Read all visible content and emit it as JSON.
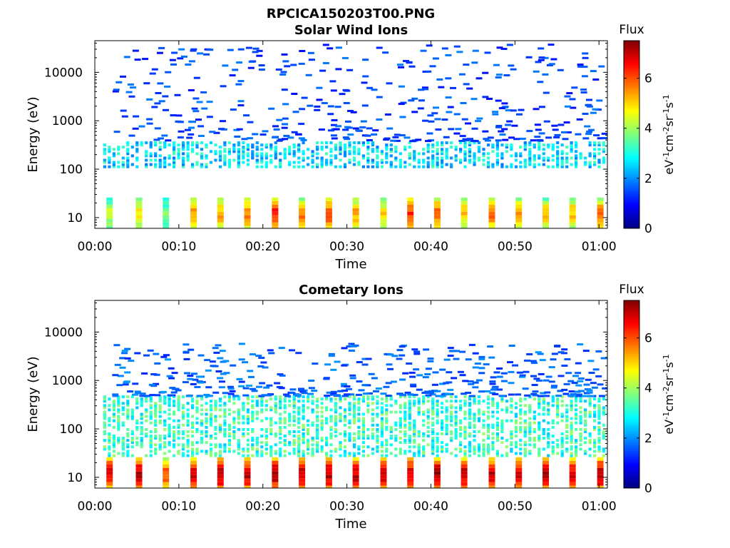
{
  "figure_title": "RPCICA150203T00.PNG",
  "colormap": [
    "#00007f",
    "#0000ff",
    "#007fff",
    "#00ffff",
    "#7fff7f",
    "#ffff00",
    "#ff7f00",
    "#ff0000",
    "#7f0000"
  ],
  "chart_data": [
    {
      "type": "heatmap",
      "title": "Solar Wind Ions",
      "xlabel": "Time",
      "ylabel": "Energy (eV)",
      "xscale": "linear",
      "yscale": "log",
      "xlim_minutes": [
        0,
        61
      ],
      "ylim": [
        6,
        45000
      ],
      "xticks": [
        {
          "v": 0,
          "label": "00:00"
        },
        {
          "v": 10,
          "label": "00:10"
        },
        {
          "v": 20,
          "label": "00:20"
        },
        {
          "v": 30,
          "label": "00:30"
        },
        {
          "v": 40,
          "label": "00:40"
        },
        {
          "v": 50,
          "label": "00:50"
        },
        {
          "v": 60,
          "label": "01:00"
        }
      ],
      "yticks": [
        {
          "v": 10,
          "label": "10"
        },
        {
          "v": 100,
          "label": "100"
        },
        {
          "v": 1000,
          "label": "1000"
        },
        {
          "v": 10000,
          "label": "10000"
        }
      ],
      "colorbar": {
        "label": "Flux",
        "units": "eV-1cm-2sr-1s-1",
        "range": [
          0,
          7.5
        ],
        "ticks": [
          {
            "v": 0,
            "label": "0"
          },
          {
            "v": 2,
            "label": "2"
          },
          {
            "v": 4,
            "label": "4"
          },
          {
            "v": 6,
            "label": "6"
          }
        ]
      },
      "low_energy_bursts": [
        {
          "t": 1.8,
          "v": 4.0
        },
        {
          "t": 5.3,
          "v": 4.6
        },
        {
          "t": 8.5,
          "v": 3.6
        },
        {
          "t": 11.8,
          "v": 5.2
        },
        {
          "t": 15.0,
          "v": 5.0
        },
        {
          "t": 18.2,
          "v": 5.4
        },
        {
          "t": 21.5,
          "v": 6.1
        },
        {
          "t": 24.7,
          "v": 5.4
        },
        {
          "t": 27.9,
          "v": 5.8
        },
        {
          "t": 31.1,
          "v": 5.1
        },
        {
          "t": 34.4,
          "v": 4.6
        },
        {
          "t": 37.6,
          "v": 5.9
        },
        {
          "t": 40.8,
          "v": 5.6
        },
        {
          "t": 44.0,
          "v": 4.8
        },
        {
          "t": 47.3,
          "v": 5.4
        },
        {
          "t": 50.5,
          "v": 5.2
        },
        {
          "t": 53.7,
          "v": 4.8
        },
        {
          "t": 56.9,
          "v": 5.0
        },
        {
          "t": 60.2,
          "v": 5.5
        }
      ],
      "main_band_energy_ev": [
        120,
        400
      ],
      "main_band_level": 2.6,
      "sparse_counts_energy_ev": [
        400,
        40000
      ],
      "sparse_counts_level": 1.0
    },
    {
      "type": "heatmap",
      "title": "Cometary Ions",
      "xlabel": "Time",
      "ylabel": "Energy (eV)",
      "xscale": "linear",
      "yscale": "log",
      "xlim_minutes": [
        0,
        61
      ],
      "ylim": [
        6,
        45000
      ],
      "xticks": [
        {
          "v": 0,
          "label": "00:00"
        },
        {
          "v": 10,
          "label": "00:10"
        },
        {
          "v": 20,
          "label": "00:20"
        },
        {
          "v": 30,
          "label": "00:30"
        },
        {
          "v": 40,
          "label": "00:40"
        },
        {
          "v": 50,
          "label": "00:50"
        },
        {
          "v": 60,
          "label": "01:00"
        }
      ],
      "yticks": [
        {
          "v": 10,
          "label": "10"
        },
        {
          "v": 100,
          "label": "100"
        },
        {
          "v": 1000,
          "label": "1000"
        },
        {
          "v": 10000,
          "label": "10000"
        }
      ],
      "colorbar": {
        "label": "Flux",
        "units": "eV-1cm-2sr-1s-1",
        "range": [
          0,
          7.5
        ],
        "ticks": [
          {
            "v": 0,
            "label": "0"
          },
          {
            "v": 2,
            "label": "2"
          },
          {
            "v": 4,
            "label": "4"
          },
          {
            "v": 6,
            "label": "6"
          }
        ]
      },
      "low_energy_bursts": [
        {
          "t": 1.8,
          "v": 6.4
        },
        {
          "t": 5.3,
          "v": 6.6
        },
        {
          "t": 8.5,
          "v": 5.8
        },
        {
          "t": 11.8,
          "v": 6.4
        },
        {
          "t": 15.0,
          "v": 6.8
        },
        {
          "t": 18.2,
          "v": 6.6
        },
        {
          "t": 21.5,
          "v": 6.8
        },
        {
          "t": 24.7,
          "v": 6.8
        },
        {
          "t": 27.9,
          "v": 6.7
        },
        {
          "t": 31.1,
          "v": 6.6
        },
        {
          "t": 34.4,
          "v": 6.7
        },
        {
          "t": 37.6,
          "v": 6.6
        },
        {
          "t": 40.8,
          "v": 6.8
        },
        {
          "t": 44.0,
          "v": 6.6
        },
        {
          "t": 47.3,
          "v": 6.6
        },
        {
          "t": 50.5,
          "v": 6.4
        },
        {
          "t": 53.7,
          "v": 6.7
        },
        {
          "t": 56.9,
          "v": 6.6
        },
        {
          "t": 60.2,
          "v": 6.7
        }
      ],
      "main_band_energy_ev": [
        30,
        500
      ],
      "main_band_level": 3.2,
      "sparse_counts_energy_ev": [
        500,
        6000
      ],
      "sparse_counts_level": 1.2
    }
  ]
}
